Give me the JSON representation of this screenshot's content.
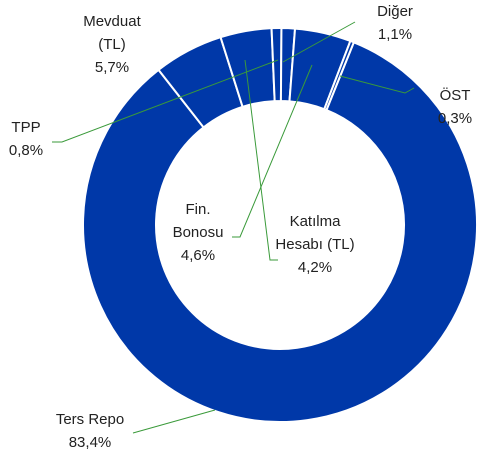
{
  "chart_data": {
    "type": "donut",
    "categories": [
      "Ters Repo",
      "Mevduat (TL)",
      "Katılma Hesabı (TL)",
      "TPP",
      "Diğer",
      "Fin. Bonosu",
      "ÖST"
    ],
    "values": [
      83.4,
      5.7,
      4.2,
      0.8,
      1.1,
      4.6,
      0.3
    ],
    "value_labels": [
      "83,4%",
      "5,7%",
      "4,2%",
      "0,8%",
      "1,1%",
      "4,6%",
      "0,3%"
    ],
    "color": "#0038a8"
  }
}
